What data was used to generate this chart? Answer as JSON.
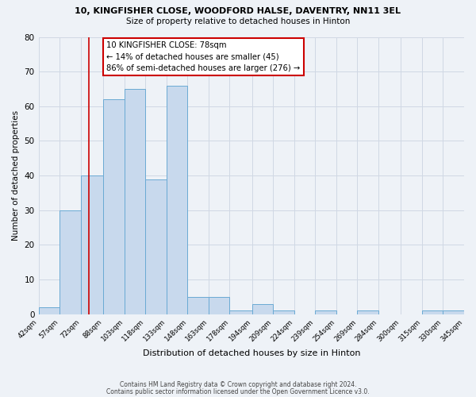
{
  "title": "10, KINGFISHER CLOSE, WOODFORD HALSE, DAVENTRY, NN11 3EL",
  "subtitle": "Size of property relative to detached houses in Hinton",
  "xlabel": "Distribution of detached houses by size in Hinton",
  "ylabel": "Number of detached properties",
  "bar_color": "#c8d9ed",
  "bar_edge_color": "#6aaad4",
  "bin_edges": [
    42,
    57,
    72,
    88,
    103,
    118,
    133,
    148,
    163,
    178,
    194,
    209,
    224,
    239,
    254,
    269,
    284,
    300,
    315,
    330,
    345
  ],
  "bar_heights": [
    2,
    30,
    40,
    62,
    65,
    39,
    66,
    5,
    5,
    1,
    3,
    1,
    0,
    1,
    0,
    1,
    0,
    0,
    1,
    1
  ],
  "tick_labels": [
    "42sqm",
    "57sqm",
    "72sqm",
    "88sqm",
    "103sqm",
    "118sqm",
    "133sqm",
    "148sqm",
    "163sqm",
    "178sqm",
    "194sqm",
    "209sqm",
    "224sqm",
    "239sqm",
    "254sqm",
    "269sqm",
    "284sqm",
    "300sqm",
    "315sqm",
    "330sqm",
    "345sqm"
  ],
  "ylim": [
    0,
    80
  ],
  "yticks": [
    0,
    10,
    20,
    30,
    40,
    50,
    60,
    70,
    80
  ],
  "vline_x": 78,
  "vline_color": "#cc0000",
  "annotation_line1": "10 KINGFISHER CLOSE: 78sqm",
  "annotation_line2": "← 14% of detached houses are smaller (45)",
  "annotation_line3": "86% of semi-detached houses are larger (276) →",
  "box_edge_color": "#cc0000",
  "grid_color": "#d0d8e4",
  "bg_color": "#eef2f7",
  "footer_line1": "Contains HM Land Registry data © Crown copyright and database right 2024.",
  "footer_line2": "Contains public sector information licensed under the Open Government Licence v3.0."
}
